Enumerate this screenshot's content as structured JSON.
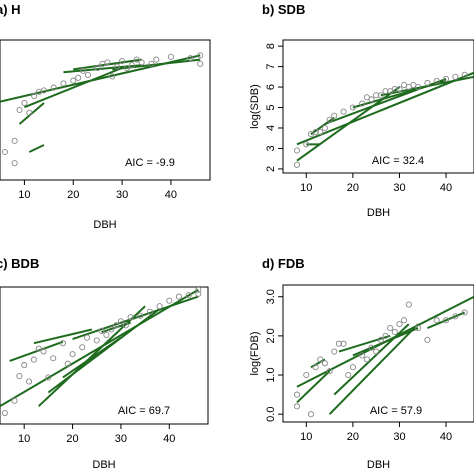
{
  "chart_data": [
    {
      "type": "scatter",
      "title": "a) H",
      "xlabel": "DBH",
      "ylabel": "",
      "xlim": [
        5,
        48
      ],
      "ylim": [
        0,
        10
      ],
      "xticks": [
        "10",
        "20",
        "30",
        "40"
      ],
      "yticks": [],
      "annotation": "AIC = -9.9",
      "points": [
        [
          6,
          2
        ],
        [
          8,
          1.2
        ],
        [
          8,
          2.8
        ],
        [
          9,
          5
        ],
        [
          10,
          5.5
        ],
        [
          11,
          4.8
        ],
        [
          12,
          6
        ],
        [
          13,
          6.3
        ],
        [
          14,
          6.4
        ],
        [
          16,
          6.6
        ],
        [
          18,
          6.9
        ],
        [
          20,
          7.1
        ],
        [
          21,
          7.3
        ],
        [
          22,
          7.8
        ],
        [
          23,
          7.5
        ],
        [
          25,
          8
        ],
        [
          26,
          8.3
        ],
        [
          27,
          8.4
        ],
        [
          28,
          7.4
        ],
        [
          29,
          8.1
        ],
        [
          30,
          8.5
        ],
        [
          31,
          8
        ],
        [
          32,
          8.2
        ],
        [
          33,
          8.6
        ],
        [
          34,
          8.4
        ],
        [
          36,
          8.3
        ],
        [
          37,
          8.6
        ],
        [
          40,
          8.8
        ],
        [
          44,
          8.7
        ],
        [
          46,
          8.9
        ],
        [
          46,
          8.3
        ]
      ],
      "lines": [
        [
          [
            5,
            5.6
          ],
          [
            46,
            8.9
          ]
        ],
        [
          [
            9,
            4.0
          ],
          [
            14,
            5.5
          ]
        ],
        [
          [
            10,
            5.2
          ],
          [
            30,
            8.0
          ]
        ],
        [
          [
            18,
            7.7
          ],
          [
            34,
            8.2
          ]
        ],
        [
          [
            20,
            7.9
          ],
          [
            34,
            8.6
          ]
        ],
        [
          [
            28,
            7.9
          ],
          [
            46,
            8.6
          ]
        ],
        [
          [
            11,
            2.0
          ],
          [
            14,
            2.5
          ]
        ]
      ]
    },
    {
      "type": "scatter",
      "title": "b) SDB",
      "xlabel": "DBH",
      "ylabel": "log(SDB)",
      "xlim": [
        5,
        46
      ],
      "ylim": [
        1.8,
        8.3
      ],
      "xticks": [
        "10",
        "20",
        "30",
        "40"
      ],
      "yticks": [
        "2",
        "3",
        "4",
        "5",
        "6",
        "7",
        "8"
      ],
      "annotation": "AIC = 32.4",
      "points": [
        [
          8,
          2.2
        ],
        [
          8,
          2.9
        ],
        [
          10,
          3.2
        ],
        [
          11,
          3.7
        ],
        [
          12,
          3.8
        ],
        [
          13,
          3.8
        ],
        [
          14,
          4
        ],
        [
          15,
          4.4
        ],
        [
          16,
          4.6
        ],
        [
          18,
          4.8
        ],
        [
          20,
          5
        ],
        [
          22,
          5.2
        ],
        [
          23,
          5.5
        ],
        [
          24,
          5.4
        ],
        [
          25,
          5.6
        ],
        [
          26,
          5.6
        ],
        [
          27,
          5.8
        ],
        [
          28,
          5.8
        ],
        [
          29,
          5.9
        ],
        [
          30,
          5.9
        ],
        [
          31,
          6.1
        ],
        [
          32,
          6
        ],
        [
          33,
          6.1
        ],
        [
          34,
          6
        ],
        [
          36,
          6.2
        ],
        [
          38,
          6.3
        ],
        [
          40,
          6.4
        ],
        [
          42,
          6.5
        ],
        [
          44,
          6.6
        ]
      ],
      "lines": [
        [
          [
            8,
            3.2
          ],
          [
            46,
            6.7
          ]
        ],
        [
          [
            8,
            2.4
          ],
          [
            30,
            6.0
          ]
        ],
        [
          [
            14,
            4.2
          ],
          [
            40,
            6.4
          ]
        ],
        [
          [
            11,
            3.7
          ],
          [
            16,
            4.5
          ]
        ],
        [
          [
            20,
            5.0
          ],
          [
            40,
            6.3
          ]
        ],
        [
          [
            26,
            5.6
          ],
          [
            46,
            6.5
          ]
        ],
        [
          [
            10,
            3.2
          ],
          [
            13,
            3.2
          ]
        ]
      ]
    },
    {
      "type": "scatter",
      "title": "c) BDB",
      "xlabel": "DBH",
      "ylabel": "",
      "xlim": [
        5,
        48
      ],
      "ylim": [
        0,
        10
      ],
      "xticks": [
        "10",
        "20",
        "30",
        "40"
      ],
      "yticks": [],
      "annotation": "AIC = 69.7",
      "points": [
        [
          6,
          0.8
        ],
        [
          8,
          1.7
        ],
        [
          9,
          3.5
        ],
        [
          10,
          4.3
        ],
        [
          11,
          3.1
        ],
        [
          12,
          4.7
        ],
        [
          13,
          5.5
        ],
        [
          14,
          5.3
        ],
        [
          15,
          3.4
        ],
        [
          16,
          4.8
        ],
        [
          18,
          5.9
        ],
        [
          19,
          4.4
        ],
        [
          20,
          5.1
        ],
        [
          22,
          5.6
        ],
        [
          23,
          6.3
        ],
        [
          25,
          6.1
        ],
        [
          26,
          6.8
        ],
        [
          27,
          6.5
        ],
        [
          28,
          6.9
        ],
        [
          29,
          7.2
        ],
        [
          30,
          7.5
        ],
        [
          31,
          7.2
        ],
        [
          32,
          7.8
        ],
        [
          34,
          7.9
        ],
        [
          36,
          8.2
        ],
        [
          38,
          8.6
        ],
        [
          40,
          9.0
        ],
        [
          42,
          9.3
        ],
        [
          44,
          9.4
        ],
        [
          46,
          9.5
        ],
        [
          46,
          9.8
        ]
      ],
      "lines": [
        [
          [
            5,
            1.3
          ],
          [
            46,
            9.8
          ]
        ],
        [
          [
            7,
            4.6
          ],
          [
            18,
            6.0
          ]
        ],
        [
          [
            12,
            5.9
          ],
          [
            24,
            6.9
          ]
        ],
        [
          [
            13,
            1.3
          ],
          [
            35,
            8.6
          ]
        ],
        [
          [
            15,
            2.3
          ],
          [
            38,
            8.4
          ]
        ],
        [
          [
            20,
            6.2
          ],
          [
            46,
            9.3
          ]
        ],
        [
          [
            26,
            6.7
          ],
          [
            32,
            7.4
          ]
        ],
        [
          [
            18,
            3.4
          ],
          [
            30,
            6.3
          ]
        ]
      ]
    },
    {
      "type": "scatter",
      "title": "d) FDB",
      "xlabel": "DBH",
      "ylabel": "log(FDB)",
      "xlim": [
        5,
        46
      ],
      "ylim": [
        -0.2,
        3.3
      ],
      "xticks": [
        "10",
        "20",
        "30",
        "40"
      ],
      "yticks": [
        "0.0",
        "1.0",
        "2.0",
        "3.0"
      ],
      "annotation": "AIC = 57.9",
      "points": [
        [
          8,
          0.2
        ],
        [
          8,
          0.5
        ],
        [
          10,
          1.0
        ],
        [
          11,
          0.0
        ],
        [
          12,
          1.2
        ],
        [
          13,
          1.4
        ],
        [
          14,
          1.3
        ],
        [
          15,
          1.1
        ],
        [
          16,
          1.6
        ],
        [
          17,
          1.8
        ],
        [
          18,
          1.8
        ],
        [
          19,
          1.0
        ],
        [
          20,
          1.2
        ],
        [
          22,
          1.5
        ],
        [
          23,
          1.4
        ],
        [
          24,
          1.7
        ],
        [
          25,
          1.6
        ],
        [
          26,
          1.9
        ],
        [
          27,
          2.0
        ],
        [
          28,
          2.2
        ],
        [
          29,
          2.1
        ],
        [
          30,
          2.3
        ],
        [
          31,
          2.4
        ],
        [
          32,
          2.8
        ],
        [
          34,
          2.2
        ],
        [
          36,
          1.9
        ],
        [
          38,
          2.4
        ],
        [
          40,
          2.4
        ],
        [
          42,
          2.5
        ],
        [
          44,
          2.6
        ]
      ],
      "lines": [
        [
          [
            8,
            0.7
          ],
          [
            46,
            3.0
          ]
        ],
        [
          [
            8,
            0.3
          ],
          [
            15,
            1.1
          ]
        ],
        [
          [
            15,
            0.0
          ],
          [
            34,
            2.3
          ]
        ],
        [
          [
            16,
            0.5
          ],
          [
            32,
            2.3
          ]
        ],
        [
          [
            17,
            1.6
          ],
          [
            28,
            2.0
          ]
        ],
        [
          [
            20,
            1.5
          ],
          [
            34,
            2.2
          ]
        ],
        [
          [
            36,
            2.2
          ],
          [
            44,
            2.6
          ]
        ],
        [
          [
            11,
            1.2
          ],
          [
            14,
            1.4
          ]
        ]
      ]
    }
  ]
}
